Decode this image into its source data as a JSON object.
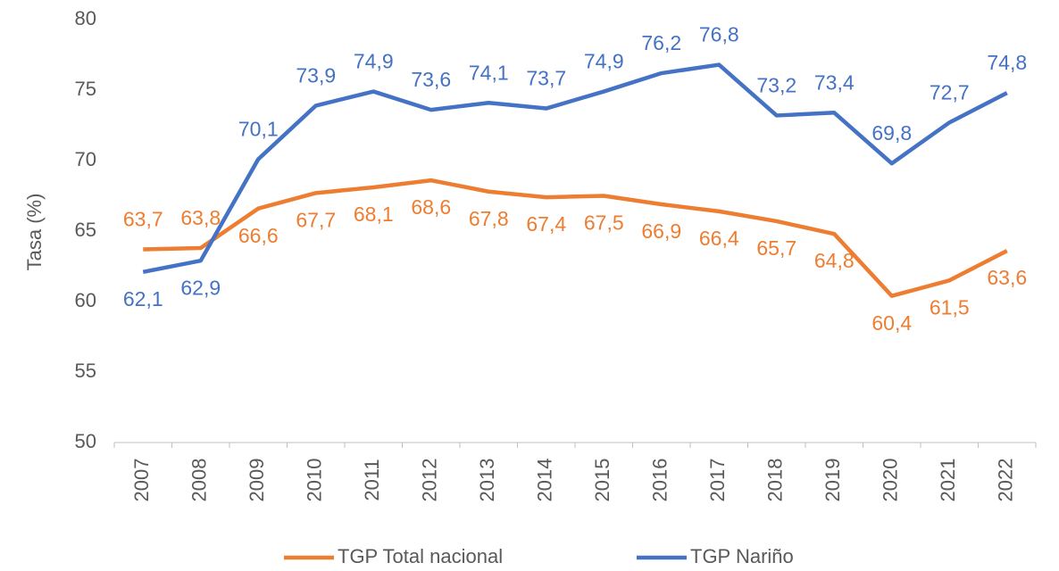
{
  "chart_data": {
    "type": "line",
    "y_label": "Tasa (%)",
    "categories": [
      "2007",
      "2008",
      "2009",
      "2010",
      "2011",
      "2012",
      "2013",
      "2014",
      "2015",
      "2016",
      "2017",
      "2018",
      "2019",
      "2020",
      "2021",
      "2022"
    ],
    "series": [
      {
        "name": "TGP Total nacional",
        "color": "#ED7D31",
        "values": [
          63.7,
          63.8,
          66.6,
          67.7,
          68.1,
          68.6,
          67.8,
          67.4,
          67.5,
          66.9,
          66.4,
          65.7,
          64.8,
          60.4,
          61.5,
          63.6
        ],
        "value_labels": [
          "63,7",
          "63,8",
          "66,6",
          "67,7",
          "68,1",
          "68,6",
          "67,8",
          "67,4",
          "67,5",
          "66,9",
          "66,4",
          "65,7",
          "64,8",
          "60,4",
          "61,5",
          "63,6"
        ]
      },
      {
        "name": "TGP Nariño",
        "color": "#4472C4",
        "values": [
          62.1,
          62.9,
          70.1,
          73.9,
          74.9,
          73.6,
          74.1,
          73.7,
          74.9,
          76.2,
          76.8,
          73.2,
          73.4,
          69.8,
          72.7,
          74.8
        ],
        "value_labels": [
          "62,1",
          "62,9",
          "70,1",
          "73,9",
          "74,9",
          "73,6",
          "74,1",
          "73,7",
          "74,9",
          "76,2",
          "76,8",
          "73,2",
          "73,4",
          "69,8",
          "72,7",
          "74,8"
        ]
      }
    ],
    "ylim": [
      50,
      80
    ],
    "yticks": [
      50,
      55,
      60,
      65,
      70,
      75,
      80
    ],
    "grid": false,
    "legend": "bottom"
  }
}
